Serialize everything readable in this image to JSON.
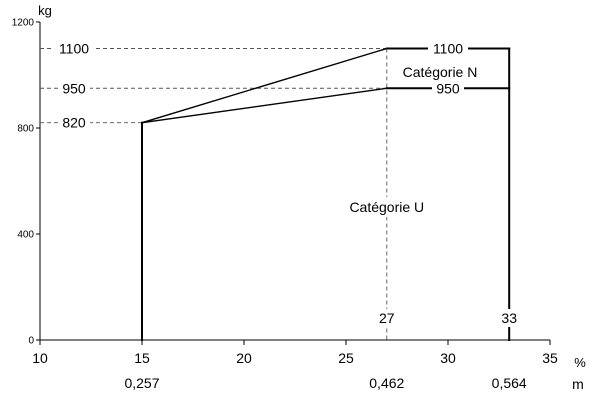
{
  "chart_data": {
    "type": "line",
    "ylabel": "kg",
    "x_unit_label": "%",
    "m_unit_label": "m",
    "xlim": [
      10,
      35
    ],
    "ylim": [
      0,
      1200
    ],
    "x_ticks": [
      10,
      15,
      20,
      25,
      30,
      35
    ],
    "x_tick_labels": [
      "10",
      "15",
      "20",
      "25",
      "30",
      "35"
    ],
    "y_ticks": [
      0,
      400,
      800,
      1200
    ],
    "y_tick_labels": [
      "0",
      "400",
      "800",
      "1200"
    ],
    "m_axis": [
      {
        "x": 15,
        "label": "0,257"
      },
      {
        "x": 27,
        "label": "0,462"
      },
      {
        "x": 33,
        "label": "0,564"
      }
    ],
    "series": [
      {
        "x": [
          15,
          15,
          27,
          33,
          33
        ],
        "y": [
          0,
          820,
          1100,
          1100,
          0
        ]
      },
      {
        "x": [
          15,
          27,
          33
        ],
        "y": [
          820,
          950,
          950
        ]
      }
    ],
    "reference_levels": [
      {
        "y": 1100,
        "label": "1100",
        "label_right": "1100"
      },
      {
        "y": 950,
        "label": "950",
        "label_right": "950"
      },
      {
        "y": 820,
        "label": "820"
      }
    ],
    "vertical_markers": [
      {
        "x": 27,
        "label": "27"
      },
      {
        "x": 33,
        "label": "33"
      }
    ],
    "annotations": {
      "category_n": "Catégorie N",
      "category_u": "Catégorie U"
    },
    "grid": false
  }
}
